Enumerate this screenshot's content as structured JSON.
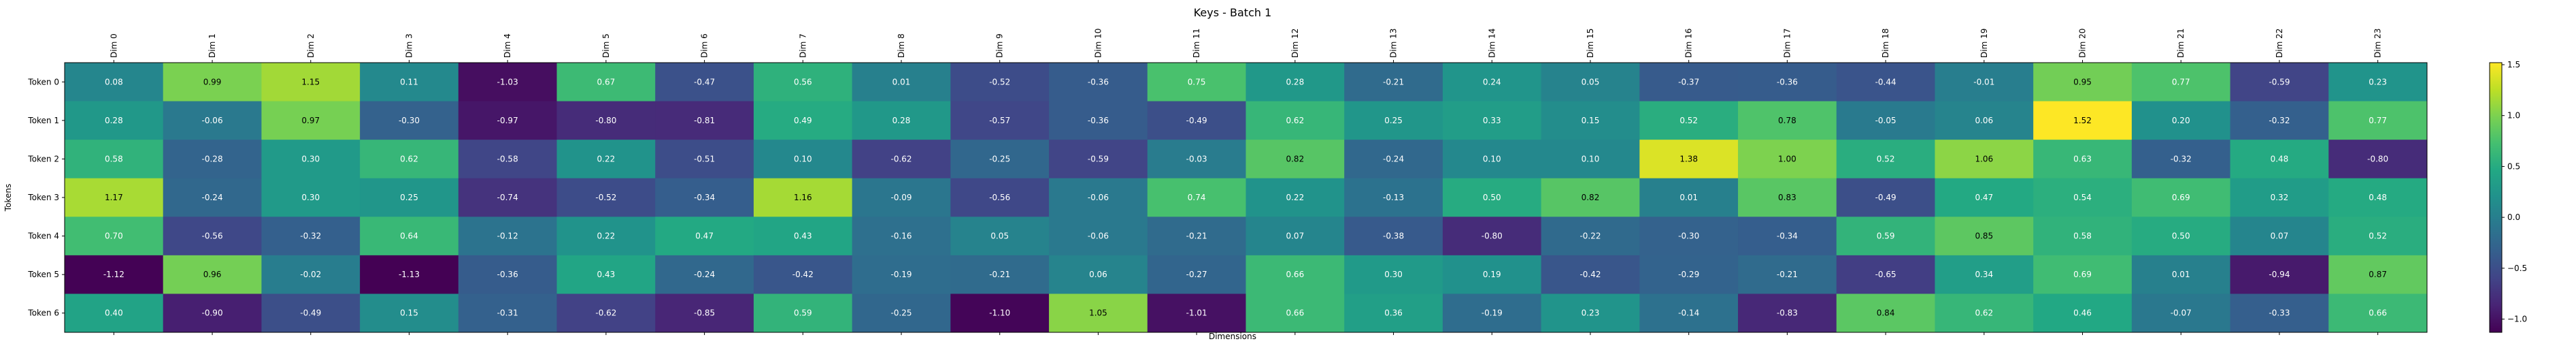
{
  "chart_data": {
    "type": "heatmap",
    "title": "Keys - Batch 1",
    "xlabel": "Dimensions",
    "ylabel": "Tokens",
    "x": [
      "Dim 0",
      "Dim 1",
      "Dim 2",
      "Dim 3",
      "Dim 4",
      "Dim 5",
      "Dim 6",
      "Dim 7",
      "Dim 8",
      "Dim 9",
      "Dim 10",
      "Dim 11",
      "Dim 12",
      "Dim 13",
      "Dim 14",
      "Dim 15",
      "Dim 16",
      "Dim 17",
      "Dim 18",
      "Dim 19",
      "Dim 20",
      "Dim 21",
      "Dim 22",
      "Dim 23"
    ],
    "y": [
      "Token 0",
      "Token 1",
      "Token 2",
      "Token 3",
      "Token 4",
      "Token 5",
      "Token 6"
    ],
    "values": [
      [
        0.08,
        0.99,
        1.15,
        0.11,
        -1.03,
        0.67,
        -0.47,
        0.56,
        0.01,
        -0.52,
        -0.36,
        0.75,
        0.28,
        -0.21,
        0.24,
        0.05,
        -0.37,
        -0.36,
        -0.44,
        -0.01,
        0.95,
        0.77,
        -0.59,
        0.23
      ],
      [
        0.28,
        -0.06,
        0.97,
        -0.3,
        -0.97,
        -0.8,
        -0.81,
        0.49,
        0.28,
        -0.57,
        -0.36,
        -0.49,
        0.62,
        0.25,
        0.33,
        0.15,
        0.52,
        0.78,
        -0.05,
        0.06,
        1.52,
        0.2,
        -0.32,
        0.77
      ],
      [
        0.58,
        -0.28,
        0.3,
        0.62,
        -0.58,
        0.22,
        -0.51,
        0.1,
        -0.62,
        -0.25,
        -0.59,
        -0.03,
        0.82,
        -0.24,
        0.1,
        0.1,
        1.38,
        1.0,
        0.52,
        1.06,
        0.63,
        -0.32,
        0.48,
        -0.8
      ],
      [
        1.17,
        -0.24,
        0.3,
        0.25,
        -0.74,
        -0.52,
        -0.34,
        1.16,
        -0.09,
        -0.56,
        -0.06,
        0.74,
        0.22,
        -0.13,
        0.5,
        0.82,
        0.01,
        0.83,
        -0.49,
        0.47,
        0.54,
        0.69,
        0.32,
        0.48
      ],
      [
        0.7,
        -0.56,
        -0.32,
        0.64,
        -0.12,
        0.22,
        0.47,
        0.43,
        -0.16,
        0.05,
        -0.06,
        -0.21,
        0.07,
        -0.38,
        -0.8,
        -0.22,
        -0.3,
        -0.34,
        0.59,
        0.85,
        0.58,
        0.5,
        0.07,
        0.52
      ],
      [
        -1.12,
        0.96,
        -0.02,
        -1.13,
        -0.36,
        0.43,
        -0.24,
        -0.42,
        -0.19,
        -0.21,
        0.06,
        -0.27,
        0.66,
        0.3,
        0.19,
        -0.42,
        -0.29,
        -0.21,
        -0.65,
        0.34,
        0.69,
        0.01,
        -0.94,
        0.87
      ],
      [
        0.4,
        -0.9,
        -0.49,
        0.15,
        -0.31,
        -0.62,
        -0.85,
        0.59,
        -0.25,
        -1.1,
        1.05,
        -1.01,
        0.66,
        0.36,
        -0.19,
        0.23,
        -0.14,
        -0.83,
        0.84,
        0.62,
        0.46,
        -0.07,
        -0.33,
        0.66
      ]
    ],
    "zlim": [
      -1.13,
      1.52
    ],
    "colormap": "viridis",
    "colorbar_ticks": [
      -1.0,
      -0.5,
      0.0,
      0.5,
      1.0,
      1.5
    ],
    "colorbar_tick_labels": [
      "−1.0",
      "−0.5",
      "0.0",
      "0.5",
      "1.0",
      "1.5"
    ],
    "grid": false
  }
}
